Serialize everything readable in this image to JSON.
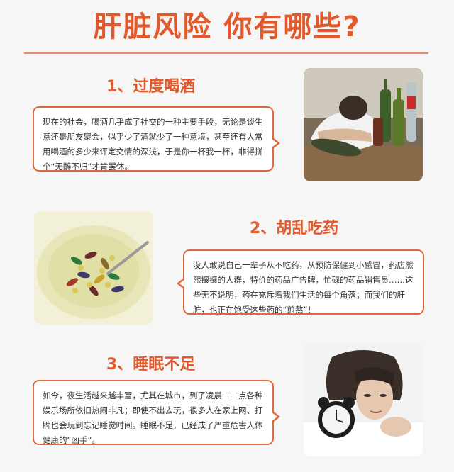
{
  "header": {
    "title": "肝脏风险  你有哪些?"
  },
  "sections": [
    {
      "heading": "1、过度喝酒",
      "body": "现在的社会，喝酒几乎成了社交的一种主要手段，无论是谈生意还是朋友聚会，似乎少了酒就少了一种意境，甚至还有人常用喝酒的多少来评定交情的深浅，于是你一杯我一杯，非得拼个“无醉不归”才肯罢休。",
      "image": "drunk-man-with-bottles"
    },
    {
      "heading": "2、胡乱吃药",
      "body": "没人敢说自己一辈子从不吃药，从预防保健到小感冒，药店熙熙攘攘的人群，特价的药品广告牌，忙碌的药品销售员……这些无不说明，药在充斥着我们生活的每个角落；而我们的肝脏，也正在饱受这些药的“煎熬”！",
      "image": "bowl-of-pills"
    },
    {
      "heading": "3、睡眠不足",
      "body": "如今，夜生活越来越丰富，尤其在城市，到了凌晨一二点各种娱乐场所依旧热闹非凡；即使不出去玩，很多人在家上网、打牌也会玩到忘记睡觉时间。睡眠不足，已经成了严重危害人体健康的“凶手”。",
      "image": "tired-woman-with-alarm-clock"
    }
  ]
}
